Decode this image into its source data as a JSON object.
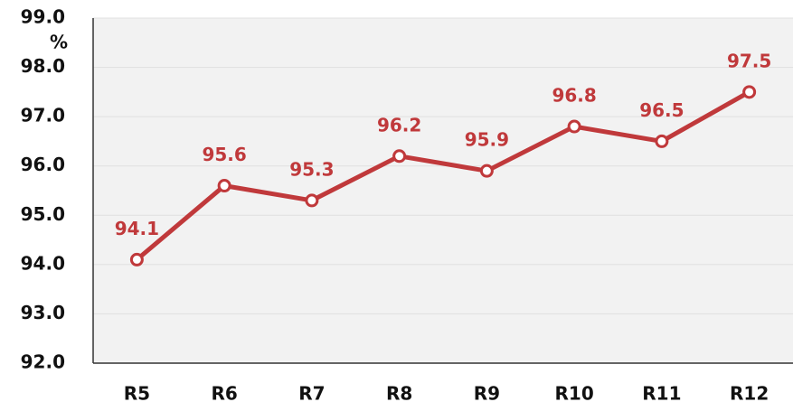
{
  "chart_data": {
    "type": "line",
    "ylabel": "%",
    "categories": [
      "R5",
      "R6",
      "R7",
      "R8",
      "R9",
      "R10",
      "R11",
      "R12"
    ],
    "series": [
      {
        "name": null,
        "color": "#c0393b",
        "values": [
          94.1,
          95.6,
          95.3,
          96.2,
          95.9,
          96.8,
          96.5,
          97.5
        ]
      }
    ],
    "ylim": [
      92,
      99
    ],
    "yticks": [
      {
        "value": 92,
        "label": "92.0"
      },
      {
        "value": 93,
        "label": "93.0"
      },
      {
        "value": 94,
        "label": "94.0"
      },
      {
        "value": 95,
        "label": "95.0"
      },
      {
        "value": 96,
        "label": "96.0"
      },
      {
        "value": 97,
        "label": "97.0"
      },
      {
        "value": 98,
        "label": "98.0"
      },
      {
        "value": 99,
        "label": "99.0"
      }
    ],
    "grid": true
  }
}
